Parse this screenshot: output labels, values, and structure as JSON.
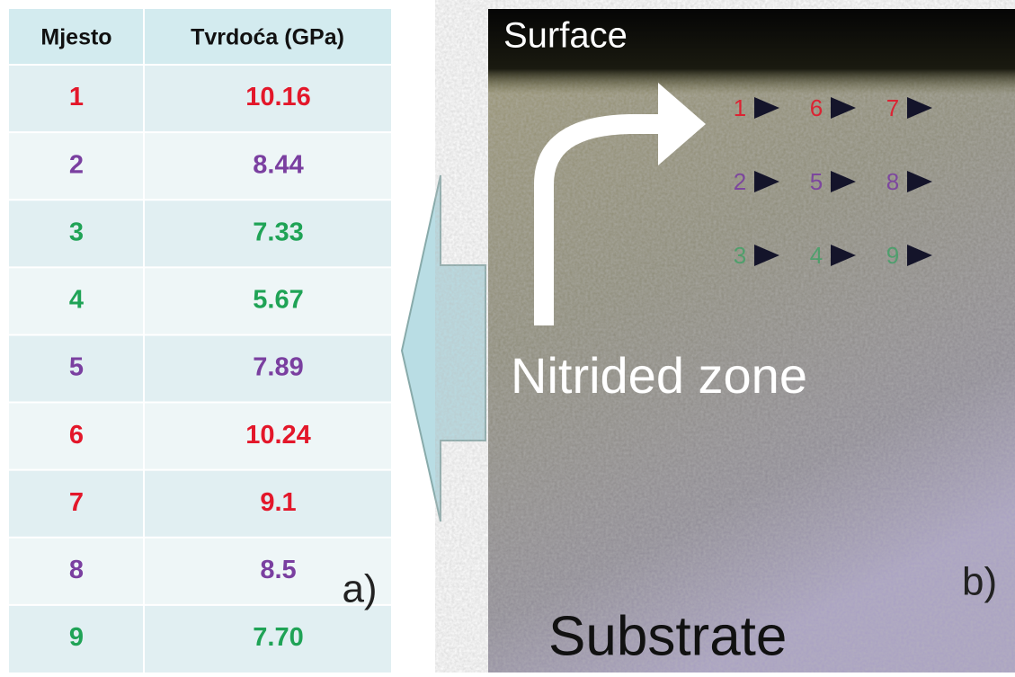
{
  "table": {
    "header": [
      "Mjesto",
      "Tvrdoća (GPa)"
    ],
    "rows": [
      {
        "place": "1",
        "hardness": "10.16",
        "color": "#e3172a"
      },
      {
        "place": "2",
        "hardness": "8.44",
        "color": "#7a3fa0"
      },
      {
        "place": "3",
        "hardness": "7.33",
        "color": "#1fa356"
      },
      {
        "place": "4",
        "hardness": "5.67",
        "color": "#1fa356"
      },
      {
        "place": "5",
        "hardness": "7.89",
        "color": "#7a3fa0"
      },
      {
        "place": "6",
        "hardness": "10.24",
        "color": "#e3172a"
      },
      {
        "place": "7",
        "hardness": "9.1",
        "color": "#e3172a"
      },
      {
        "place": "8",
        "hardness": "8.5",
        "color": "#7a3fa0"
      },
      {
        "place": "9",
        "hardness": "7.70",
        "color": "#1fa356"
      }
    ],
    "panel_label": "a)"
  },
  "image": {
    "surface": "Surface",
    "zone": "Nitrided zone",
    "substrate": "Substrate",
    "panel_label": "b)",
    "indents": [
      "1",
      "6",
      "7",
      "2",
      "5",
      "8",
      "3",
      "4",
      "9"
    ]
  }
}
